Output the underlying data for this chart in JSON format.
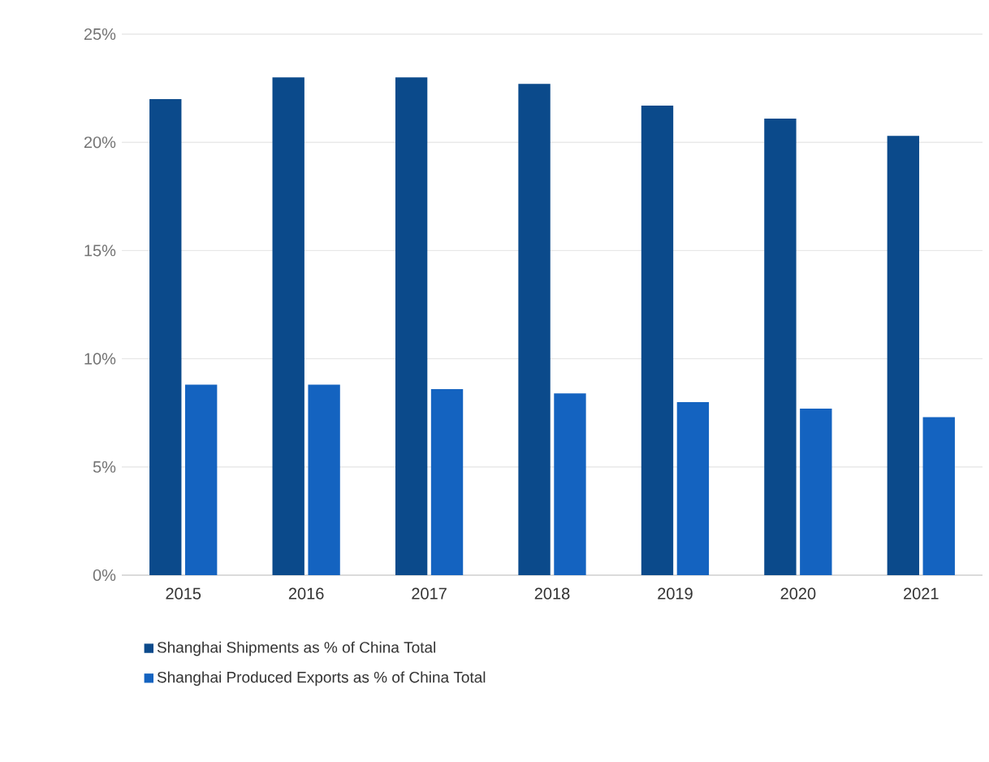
{
  "chart_data": {
    "type": "bar",
    "categories": [
      "2015",
      "2016",
      "2017",
      "2018",
      "2019",
      "2020",
      "2021"
    ],
    "series": [
      {
        "name": "Shanghai Shipments as % of China Total",
        "color": "#0b4a8b",
        "values": [
          22.0,
          23.0,
          23.0,
          22.7,
          21.7,
          21.1,
          20.3
        ]
      },
      {
        "name": "Shanghai Produced Exports as % of China Total",
        "color": "#1463c0",
        "values": [
          8.8,
          8.8,
          8.6,
          8.4,
          8.0,
          7.7,
          7.3
        ]
      }
    ],
    "ylim": [
      0,
      25
    ],
    "yticks": [
      {
        "value": 0,
        "label": "0%"
      },
      {
        "value": 5,
        "label": "5%"
      },
      {
        "value": 10,
        "label": "10%"
      },
      {
        "value": 15,
        "label": "15%"
      },
      {
        "value": 20,
        "label": "20%"
      },
      {
        "value": 25,
        "label": "25%"
      }
    ],
    "grid": "y",
    "legend": "bottom"
  }
}
